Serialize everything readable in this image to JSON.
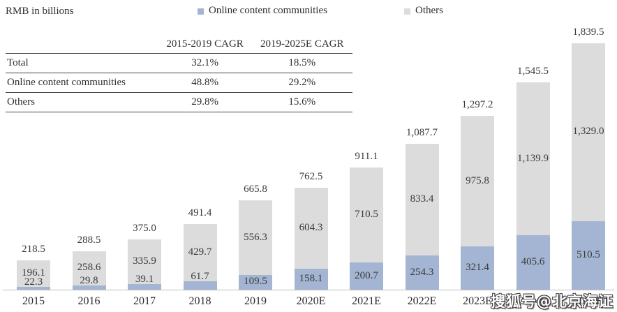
{
  "title": "RMB in billions",
  "legend": [
    {
      "label": "Online content communities",
      "color": "#a3b5d2"
    },
    {
      "label": "Others",
      "color": "#dcdcdc"
    }
  ],
  "table": {
    "headers": [
      "",
      "2015-2019 CAGR",
      "2019-2025E CAGR"
    ],
    "rows": [
      {
        "label": "Total",
        "values": [
          "32.1%",
          "18.5%"
        ]
      },
      {
        "label": "Online content communities",
        "values": [
          "48.8%",
          "29.2%"
        ]
      },
      {
        "label": "Others",
        "values": [
          "29.8%",
          "15.6%"
        ]
      }
    ]
  },
  "chart_data": {
    "type": "bar",
    "stacked": true,
    "title": "RMB in billions",
    "xlabel": "",
    "ylabel": "RMB in billions",
    "grid": false,
    "legend_position": "top",
    "ylim": [
      0,
      2000
    ],
    "categories": [
      "2015",
      "2016",
      "2017",
      "2018",
      "2019",
      "2020E",
      "2021E",
      "2022E",
      "2023E",
      "2024E",
      "2025E"
    ],
    "series": [
      {
        "name": "Online content communities",
        "color": "#a3b5d2",
        "values": [
          22.3,
          29.8,
          39.1,
          61.7,
          109.5,
          158.1,
          200.7,
          254.3,
          321.4,
          405.6,
          510.5
        ]
      },
      {
        "name": "Others",
        "color": "#dcdcdc",
        "values": [
          196.1,
          258.6,
          335.9,
          429.7,
          556.3,
          604.3,
          710.5,
          833.4,
          975.8,
          1139.9,
          1329.0
        ]
      }
    ],
    "totals": [
      218.5,
      288.5,
      375.0,
      491.4,
      665.8,
      762.5,
      911.1,
      1087.7,
      1297.2,
      1545.5,
      1839.5
    ],
    "table_annotation": {
      "headers": [
        "",
        "2015-2019 CAGR",
        "2019-2025E CAGR"
      ],
      "rows": [
        [
          "Total",
          "32.1%",
          "18.5%"
        ],
        [
          "Online content communities",
          "48.8%",
          "29.2%"
        ],
        [
          "Others",
          "29.8%",
          "15.6%"
        ]
      ]
    }
  },
  "watermark": "搜狐号@北京海证"
}
